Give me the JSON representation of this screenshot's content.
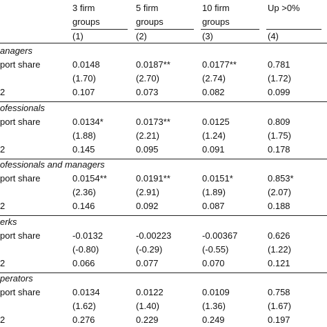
{
  "header": {
    "columns": [
      {
        "line1": "3 firm",
        "line2": "groups",
        "number": "(1)"
      },
      {
        "line1": "5 firm",
        "line2": "groups",
        "number": "(2)"
      },
      {
        "line1": "10 firm",
        "line2": "groups",
        "number": "(3)"
      },
      {
        "line1": "Up >0%",
        "number": "(4)"
      }
    ]
  },
  "sections": [
    {
      "title": "anagers",
      "rows": [
        {
          "label": "port share",
          "cells": [
            "0.0148",
            "0.0187**",
            "0.0177**",
            "0.781"
          ]
        },
        {
          "cells": [
            "(1.70)",
            "(2.70)",
            "(2.74)",
            "(1.72)"
          ]
        },
        {
          "label": "2",
          "cells": [
            "0.107",
            "0.073",
            "0.082",
            "0.099"
          ]
        }
      ]
    },
    {
      "title": "ofessionals",
      "rows": [
        {
          "label": "port share",
          "cells": [
            "0.0134*",
            "0.0173**",
            "0.0125",
            "0.809"
          ]
        },
        {
          "cells": [
            "(1.88)",
            "(2.21)",
            "(1.24)",
            "(1.75)"
          ]
        },
        {
          "label": "2",
          "cells": [
            "0.145",
            "0.095",
            "0.091",
            "0.178"
          ]
        }
      ]
    },
    {
      "title": "ofessionals and managers",
      "rows": [
        {
          "label": "port share",
          "cells": [
            "0.0154**",
            "0.0191**",
            "0.0151*",
            "0.853*"
          ]
        },
        {
          "cells": [
            "(2.36)",
            "(2.91)",
            "(1.89)",
            "(2.07)"
          ]
        },
        {
          "label": "2",
          "cells": [
            "0.146",
            "0.092",
            "0.087",
            "0.188"
          ]
        }
      ]
    },
    {
      "title": "erks",
      "rows": [
        {
          "label": "port share",
          "cells": [
            "-0.0132",
            "-0.00223",
            "-0.00367",
            "0.626"
          ]
        },
        {
          "cells": [
            "(-0.80)",
            "(-0.29)",
            "(-0.55)",
            "(1.22)"
          ]
        },
        {
          "label": "2",
          "cells": [
            "0.066",
            "0.077",
            "0.070",
            "0.121"
          ]
        }
      ]
    },
    {
      "title": "perators",
      "rows": [
        {
          "label": "port share",
          "cells": [
            "0.0134",
            "0.0122",
            "0.0109",
            "0.758"
          ]
        },
        {
          "cells": [
            "(1.62)",
            "(1.40)",
            "(1.36)",
            "(1.67)"
          ]
        },
        {
          "label": "2",
          "cells": [
            "0.276",
            "0.229",
            "0.249",
            "0.197"
          ]
        }
      ]
    }
  ]
}
